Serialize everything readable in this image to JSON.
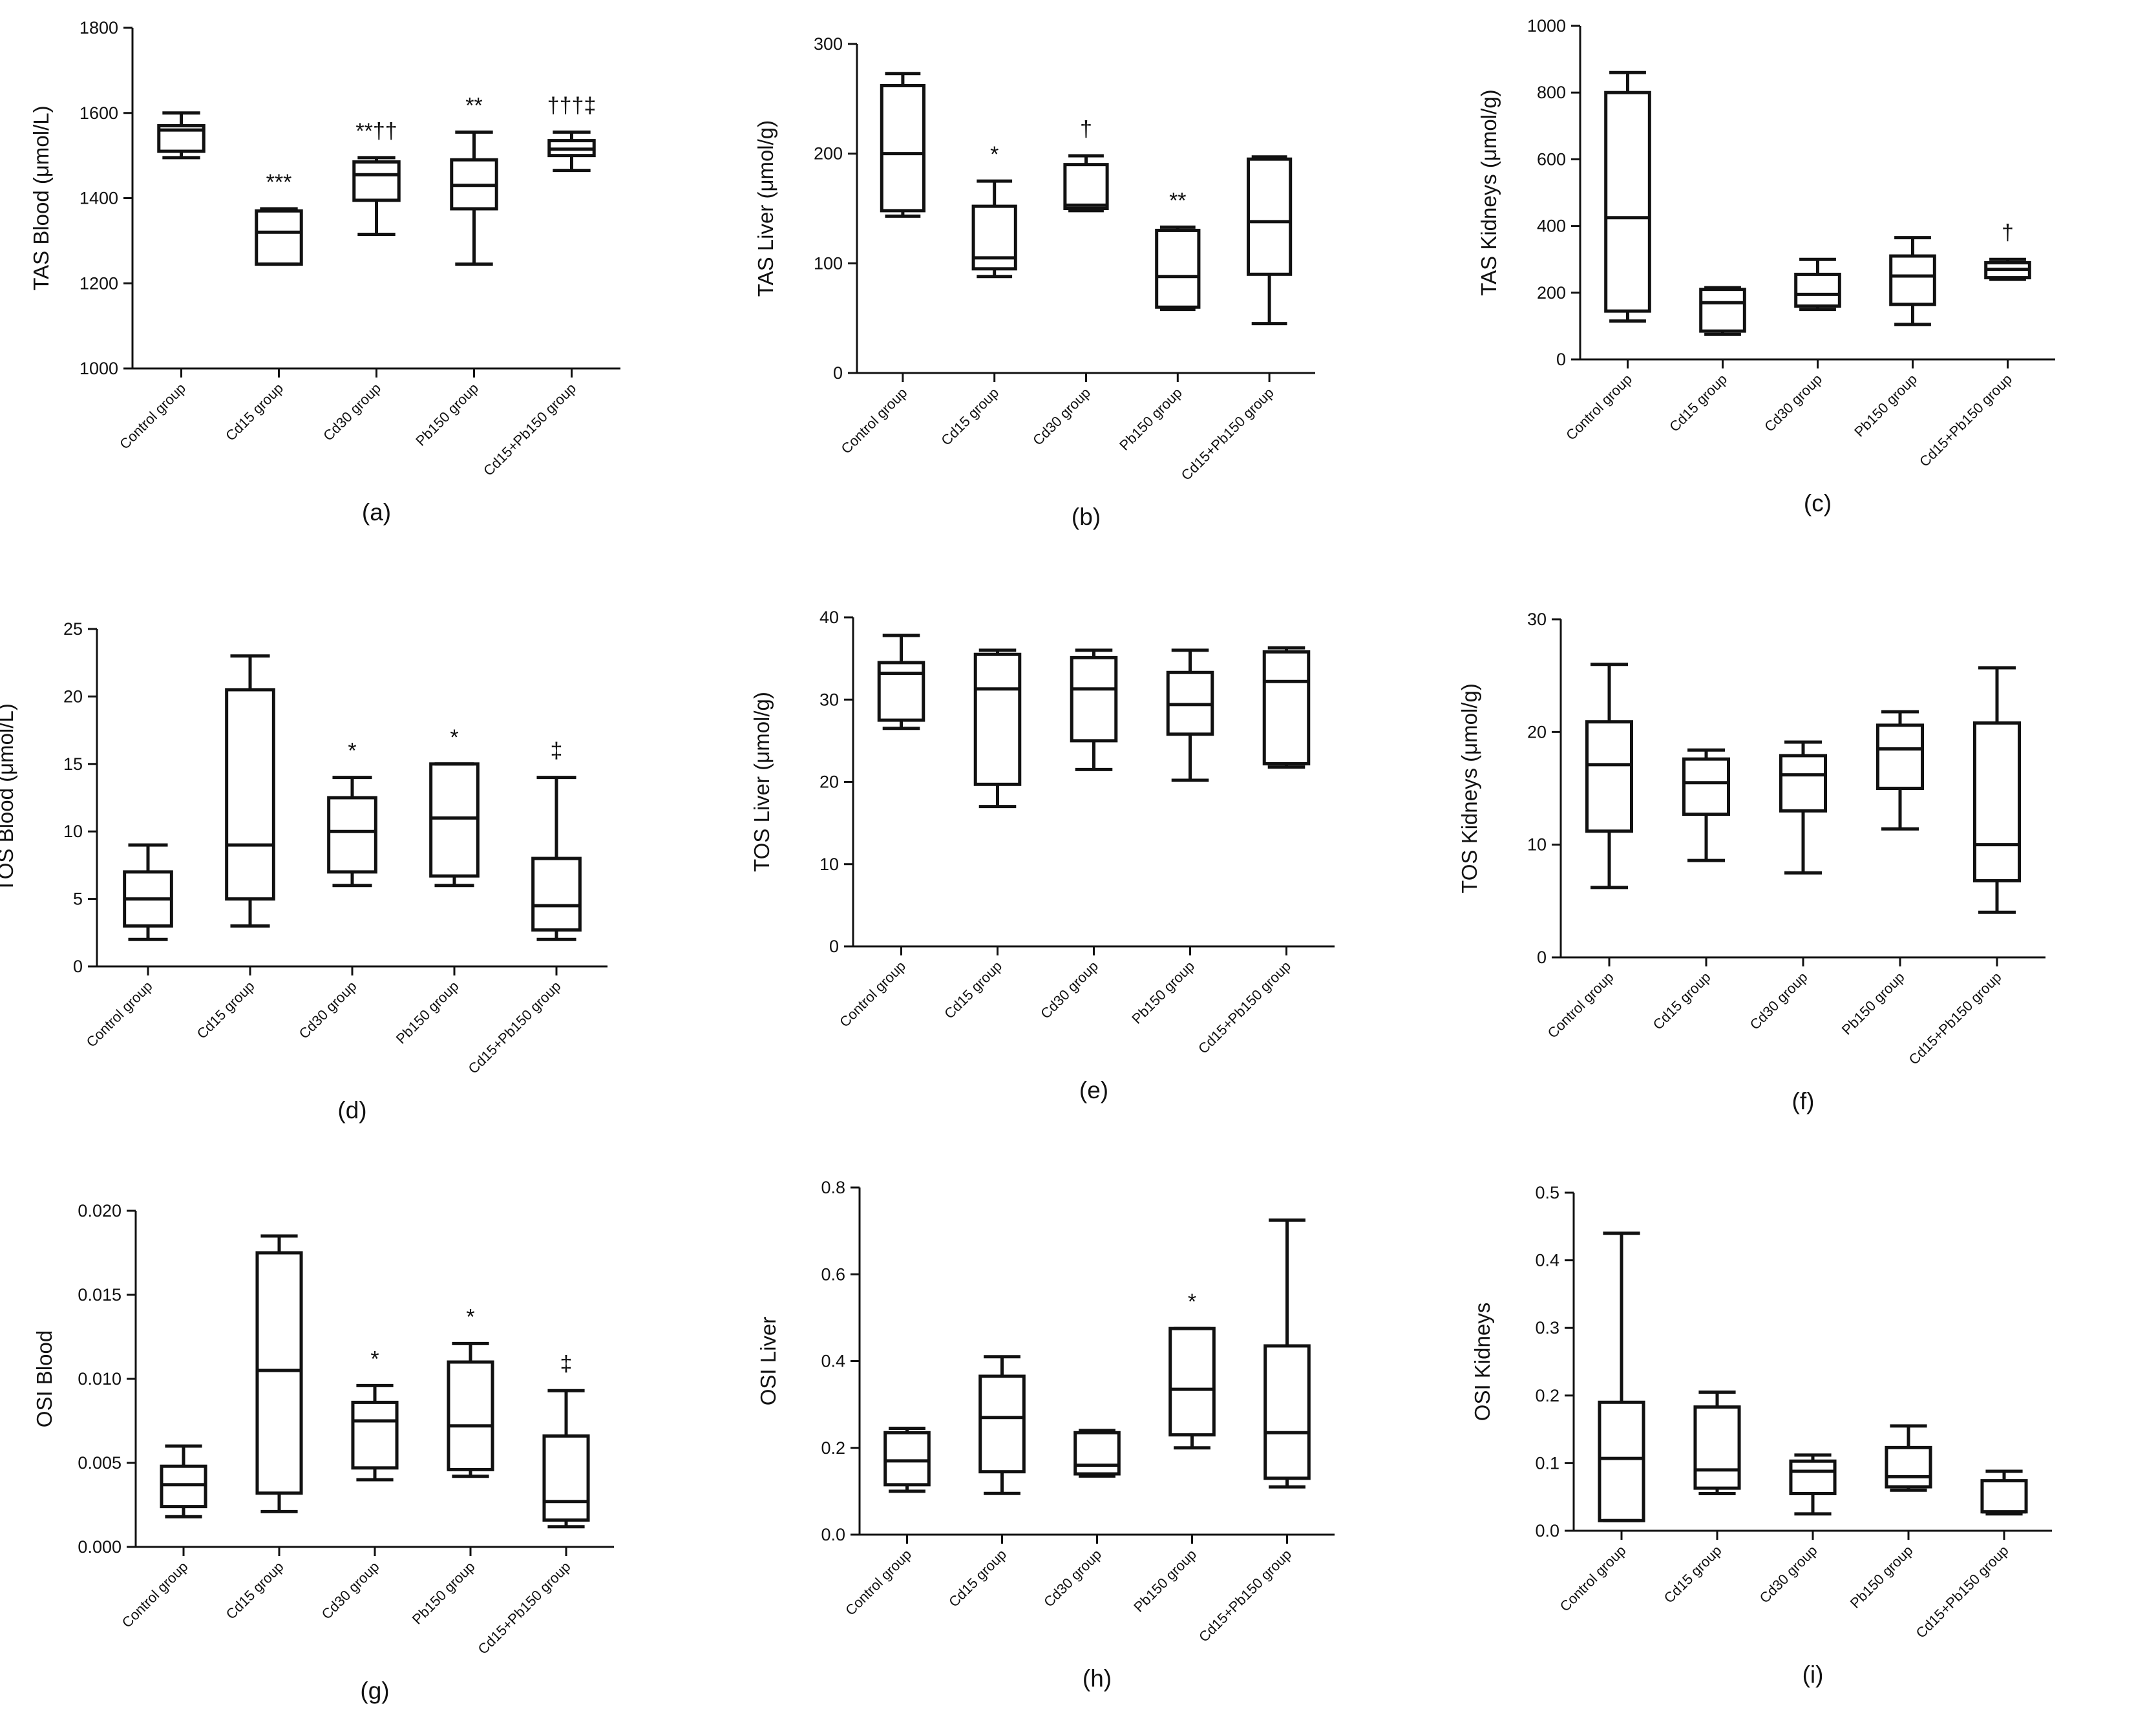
{
  "figure": {
    "background": "#ffffff",
    "ink": "#111111"
  },
  "chart_data": [
    {
      "type": "box",
      "panel": "(a)",
      "ylabel": "TAS Blood (μmol/L)",
      "ylim": [
        1000,
        1800
      ],
      "yticks": [
        1000,
        1200,
        1400,
        1600,
        1800
      ],
      "categories": [
        "Control group",
        "Cd15 group",
        "Cd30 group",
        "Pb150 group",
        "Cd15+Pb150 group"
      ],
      "boxes": [
        {
          "min": 1495,
          "q1": 1510,
          "median": 1560,
          "q3": 1570,
          "max": 1600
        },
        {
          "min": 1245,
          "q1": 1245,
          "median": 1320,
          "q3": 1370,
          "max": 1375
        },
        {
          "min": 1315,
          "q1": 1395,
          "median": 1455,
          "q3": 1485,
          "max": 1495
        },
        {
          "min": 1245,
          "q1": 1375,
          "median": 1430,
          "q3": 1490,
          "max": 1555
        },
        {
          "min": 1465,
          "q1": 1500,
          "median": 1515,
          "q3": 1535,
          "max": 1555
        }
      ],
      "annotations": [
        "",
        "***",
        "**††",
        "**",
        "†††‡"
      ]
    },
    {
      "type": "box",
      "panel": "(b)",
      "ylabel": "TAS Liver (μmol/g)",
      "ylim": [
        0,
        300
      ],
      "yticks": [
        0,
        100,
        200,
        300
      ],
      "categories": [
        "Control group",
        "Cd15 group",
        "Cd30 group",
        "Pb150 group",
        "Cd15+Pb150 group"
      ],
      "boxes": [
        {
          "min": 143,
          "q1": 148,
          "median": 200,
          "q3": 262,
          "max": 273
        },
        {
          "min": 88,
          "q1": 95,
          "median": 105,
          "q3": 152,
          "max": 175
        },
        {
          "min": 148,
          "q1": 150,
          "median": 153,
          "q3": 190,
          "max": 198
        },
        {
          "min": 58,
          "q1": 60,
          "median": 88,
          "q3": 130,
          "max": 133
        },
        {
          "min": 45,
          "q1": 90,
          "median": 138,
          "q3": 195,
          "max": 197
        }
      ],
      "annotations": [
        "",
        "*",
        "†",
        "**",
        ""
      ]
    },
    {
      "type": "box",
      "panel": "(c)",
      "ylabel": "TAS Kidneys (μmol/g)",
      "ylim": [
        0,
        1000
      ],
      "yticks": [
        0,
        200,
        400,
        600,
        800,
        1000
      ],
      "categories": [
        "Control group",
        "Cd15 group",
        "Cd30 group",
        "Pb150 group",
        "Cd15+Pb150 group"
      ],
      "boxes": [
        {
          "min": 115,
          "q1": 145,
          "median": 425,
          "q3": 800,
          "max": 860
        },
        {
          "min": 75,
          "q1": 85,
          "median": 170,
          "q3": 210,
          "max": 215
        },
        {
          "min": 150,
          "q1": 160,
          "median": 195,
          "q3": 255,
          "max": 300
        },
        {
          "min": 105,
          "q1": 165,
          "median": 250,
          "q3": 310,
          "max": 365
        },
        {
          "min": 240,
          "q1": 245,
          "median": 270,
          "q3": 290,
          "max": 300
        }
      ],
      "annotations": [
        "",
        "",
        "",
        "",
        "†"
      ]
    },
    {
      "type": "box",
      "panel": "(d)",
      "ylabel": "TOS Blood (μmol/L)",
      "ylim": [
        0,
        25
      ],
      "yticks": [
        0,
        5,
        10,
        15,
        20,
        25
      ],
      "categories": [
        "Control group",
        "Cd15 group",
        "Cd30 group",
        "Pb150 group",
        "Cd15+Pb150 group"
      ],
      "boxes": [
        {
          "min": 2,
          "q1": 3,
          "median": 5,
          "q3": 7,
          "max": 9
        },
        {
          "min": 3,
          "q1": 5,
          "median": 9,
          "q3": 20.5,
          "max": 23
        },
        {
          "min": 6,
          "q1": 7,
          "median": 10,
          "q3": 12.5,
          "max": 14
        },
        {
          "min": 6,
          "q1": 6.7,
          "median": 11,
          "q3": 15,
          "max": 15
        },
        {
          "min": 2,
          "q1": 2.7,
          "median": 4.5,
          "q3": 8,
          "max": 14
        }
      ],
      "annotations": [
        "",
        "",
        "*",
        "*",
        "‡"
      ]
    },
    {
      "type": "box",
      "panel": "(e)",
      "ylabel": "TOS Liver (μmol/g)",
      "ylim": [
        0,
        40
      ],
      "yticks": [
        0,
        10,
        20,
        30,
        40
      ],
      "categories": [
        "Control group",
        "Cd15 group",
        "Cd30 group",
        "Pb150 group",
        "Cd15+Pb150 group"
      ],
      "boxes": [
        {
          "min": 26.5,
          "q1": 27.5,
          "median": 33.2,
          "q3": 34.5,
          "max": 37.8
        },
        {
          "min": 17,
          "q1": 19.7,
          "median": 31.3,
          "q3": 35.5,
          "max": 36
        },
        {
          "min": 21.5,
          "q1": 25,
          "median": 31.3,
          "q3": 35.1,
          "max": 36
        },
        {
          "min": 20.2,
          "q1": 25.8,
          "median": 29.4,
          "q3": 33.3,
          "max": 36
        },
        {
          "min": 21.8,
          "q1": 22.2,
          "median": 32.2,
          "q3": 35.8,
          "max": 36.3
        }
      ],
      "annotations": [
        "",
        "",
        "",
        "",
        ""
      ]
    },
    {
      "type": "box",
      "panel": "(f)",
      "ylabel": "TOS Kidneys (μmol/g)",
      "ylim": [
        0,
        30
      ],
      "yticks": [
        0,
        10,
        20,
        30
      ],
      "categories": [
        "Control group",
        "Cd15 group",
        "Cd30 group",
        "Pb150 group",
        "Cd15+Pb150 group"
      ],
      "boxes": [
        {
          "min": 6.2,
          "q1": 11.2,
          "median": 17.1,
          "q3": 20.9,
          "max": 26
        },
        {
          "min": 8.6,
          "q1": 12.7,
          "median": 15.5,
          "q3": 17.6,
          "max": 18.4
        },
        {
          "min": 7.5,
          "q1": 13,
          "median": 16.2,
          "q3": 17.9,
          "max": 19.1
        },
        {
          "min": 11.4,
          "q1": 15,
          "median": 18.5,
          "q3": 20.6,
          "max": 21.8
        },
        {
          "min": 4,
          "q1": 6.8,
          "median": 10,
          "q3": 20.8,
          "max": 25.7
        }
      ],
      "annotations": [
        "",
        "",
        "",
        "",
        ""
      ]
    },
    {
      "type": "box",
      "panel": "(g)",
      "ylabel": "OSI Blood",
      "ylim": [
        0,
        0.02
      ],
      "yticks": [
        0.0,
        0.005,
        0.01,
        0.015,
        0.02
      ],
      "tick_labels": [
        "0.000",
        "0.005",
        "0.010",
        "0.015",
        "0.020"
      ],
      "categories": [
        "Control group",
        "Cd15 group",
        "Cd30 group",
        "Pb150 group",
        "Cd15+Pb150 group"
      ],
      "boxes": [
        {
          "min": 0.0018,
          "q1": 0.0024,
          "median": 0.0037,
          "q3": 0.0048,
          "max": 0.006
        },
        {
          "min": 0.0021,
          "q1": 0.0032,
          "median": 0.0105,
          "q3": 0.0175,
          "max": 0.0185
        },
        {
          "min": 0.004,
          "q1": 0.0047,
          "median": 0.0075,
          "q3": 0.0086,
          "max": 0.0096
        },
        {
          "min": 0.0042,
          "q1": 0.0046,
          "median": 0.0072,
          "q3": 0.011,
          "max": 0.0121
        },
        {
          "min": 0.0012,
          "q1": 0.0016,
          "median": 0.0027,
          "q3": 0.0066,
          "max": 0.0093
        }
      ],
      "annotations": [
        "",
        "",
        "*",
        "*",
        "‡"
      ]
    },
    {
      "type": "box",
      "panel": "(h)",
      "ylabel": "OSI Liver",
      "ylim": [
        0,
        0.8
      ],
      "yticks": [
        0.0,
        0.2,
        0.4,
        0.6,
        0.8
      ],
      "tick_labels": [
        "0.0",
        "0.2",
        "0.4",
        "0.6",
        "0.8"
      ],
      "categories": [
        "Control group",
        "Cd15 group",
        "Cd30 group",
        "Pb150 group",
        "Cd15+Pb150 group"
      ],
      "boxes": [
        {
          "min": 0.1,
          "q1": 0.115,
          "median": 0.17,
          "q3": 0.235,
          "max": 0.245
        },
        {
          "min": 0.095,
          "q1": 0.145,
          "median": 0.27,
          "q3": 0.365,
          "max": 0.41
        },
        {
          "min": 0.135,
          "q1": 0.14,
          "median": 0.16,
          "q3": 0.235,
          "max": 0.24
        },
        {
          "min": 0.2,
          "q1": 0.23,
          "median": 0.335,
          "q3": 0.475,
          "max": 0.475
        },
        {
          "min": 0.11,
          "q1": 0.13,
          "median": 0.235,
          "q3": 0.435,
          "max": 0.725
        }
      ],
      "annotations": [
        "",
        "",
        "",
        "*",
        ""
      ]
    },
    {
      "type": "box",
      "panel": "(i)",
      "ylabel": "OSI Kidneys",
      "ylim": [
        0,
        0.5
      ],
      "yticks": [
        0.0,
        0.1,
        0.2,
        0.3,
        0.4,
        0.5
      ],
      "tick_labels": [
        "0.0",
        "0.1",
        "0.2",
        "0.3",
        "0.4",
        "0.5"
      ],
      "categories": [
        "Control group",
        "Cd15 group",
        "Cd30 group",
        "Pb150 group",
        "Cd15+Pb150 group"
      ],
      "boxes": [
        {
          "min": 0.015,
          "q1": 0.015,
          "median": 0.107,
          "q3": 0.19,
          "max": 0.44
        },
        {
          "min": 0.055,
          "q1": 0.063,
          "median": 0.09,
          "q3": 0.183,
          "max": 0.205
        },
        {
          "min": 0.025,
          "q1": 0.055,
          "median": 0.088,
          "q3": 0.103,
          "max": 0.112
        },
        {
          "min": 0.06,
          "q1": 0.065,
          "median": 0.08,
          "q3": 0.123,
          "max": 0.155
        },
        {
          "min": 0.025,
          "q1": 0.028,
          "median": 0.028,
          "q3": 0.074,
          "max": 0.088
        }
      ],
      "annotations": [
        "",
        "",
        "",
        "",
        ""
      ]
    }
  ]
}
